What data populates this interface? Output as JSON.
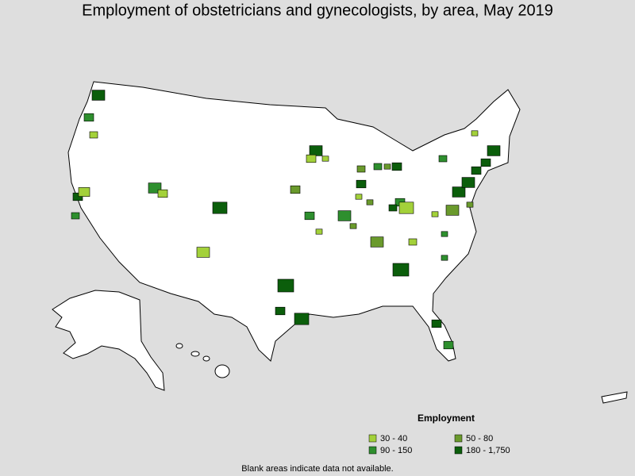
{
  "title": "Employment of obstetricians and gynecologists, by area, May 2019",
  "legend": {
    "title": "Employment",
    "items": [
      {
        "label": "30 - 40",
        "color": "#a3d13a"
      },
      {
        "label": "50 - 80",
        "color": "#6a9a2c"
      },
      {
        "label": "90 - 150",
        "color": "#2e8f2e"
      },
      {
        "label": "180 - 1,750",
        "color": "#0b5e0b"
      }
    ]
  },
  "footnote": "Blank areas indicate data not available."
}
